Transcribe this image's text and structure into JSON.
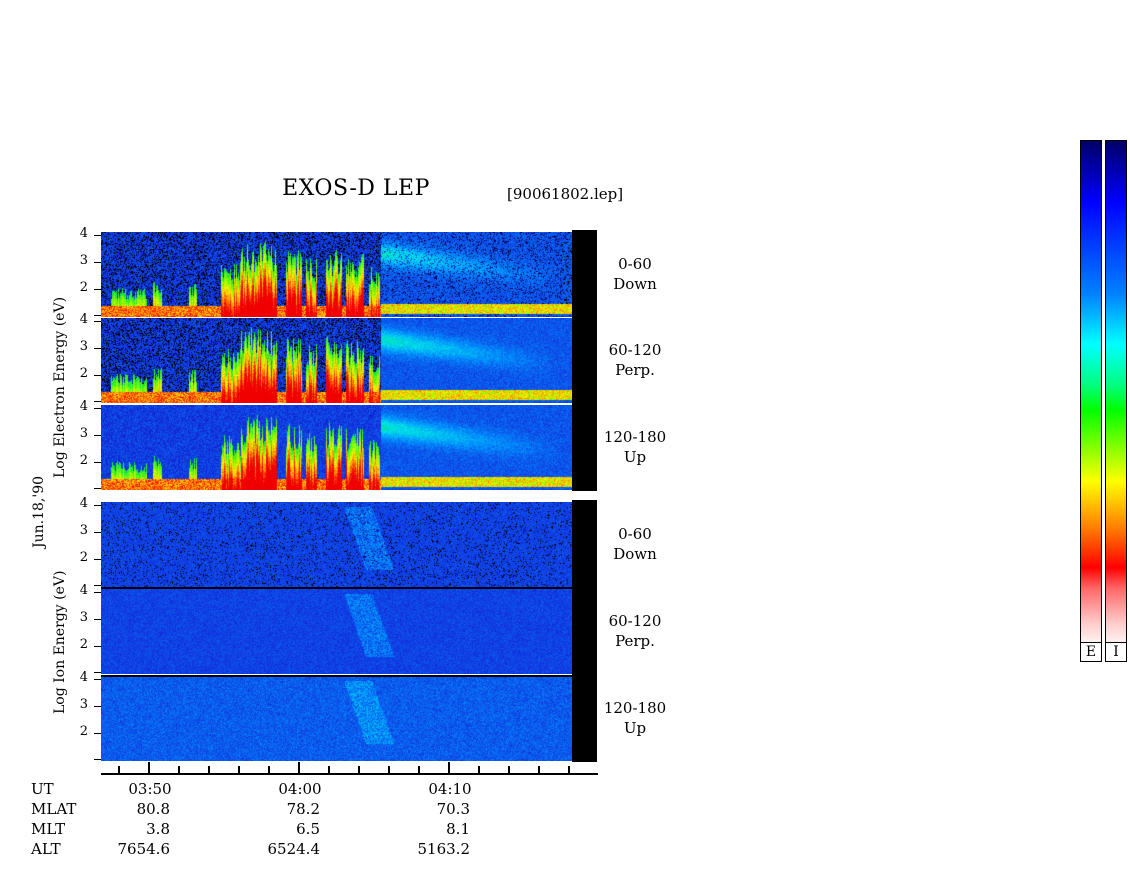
{
  "header": {
    "title": "EXOS-D LEP",
    "file": "[90061802.lep]"
  },
  "date_label": "Jun.18,'90",
  "y_axis": {
    "electron_label": "Log  Electron  Energy (eV)",
    "ion_label": "Log  Ion  Energy (eV)",
    "ticks": [
      "4",
      "3",
      "2"
    ]
  },
  "panels": [
    {
      "species": "electron",
      "angle": "0-60",
      "dir": "Down"
    },
    {
      "species": "electron",
      "angle": "60-120",
      "dir": "Perp."
    },
    {
      "species": "electron",
      "angle": "120-180",
      "dir": "Up"
    },
    {
      "species": "ion",
      "angle": "0-60",
      "dir": "Down"
    },
    {
      "species": "ion",
      "angle": "60-120",
      "dir": "Perp."
    },
    {
      "species": "ion",
      "angle": "120-180",
      "dir": "Up"
    }
  ],
  "orbit_table": {
    "row_labels": [
      "UT",
      "MLAT",
      "MLT",
      "ALT"
    ],
    "columns": [
      {
        "UT": "03:50",
        "MLAT": "80.8",
        "MLT": "3.8",
        "ALT": "7654.6"
      },
      {
        "UT": "04:00",
        "MLAT": "78.2",
        "MLT": "6.5",
        "ALT": "6524.4"
      },
      {
        "UT": "04:10",
        "MLAT": "70.3",
        "MLT": "8.1",
        "ALT": "5163.2"
      }
    ]
  },
  "colorbars": {
    "labels": [
      "E",
      "I"
    ]
  },
  "chart_data": {
    "type": "heatmap",
    "title": "EXOS-D LEP",
    "xlabel": "UT",
    "ylabel": "Log Energy (eV)",
    "x_ticks": [
      "03:50",
      "04:00",
      "04:10"
    ],
    "ylim": [
      1,
      4
    ],
    "y_ticks": [
      2,
      3,
      4
    ],
    "series": [
      {
        "name": "Electron 0-60 Down"
      },
      {
        "name": "Electron 60-120 Perp."
      },
      {
        "name": "Electron 120-180 Up"
      },
      {
        "name": "Ion 0-60 Down"
      },
      {
        "name": "Ion 60-120 Perp."
      },
      {
        "name": "Ion 120-180 Up"
      }
    ],
    "colorbar_colors": [
      "#ffffff",
      "#ff0000",
      "#ffff00",
      "#00ff00",
      "#00ffff",
      "#0000ff",
      "#000066"
    ]
  }
}
